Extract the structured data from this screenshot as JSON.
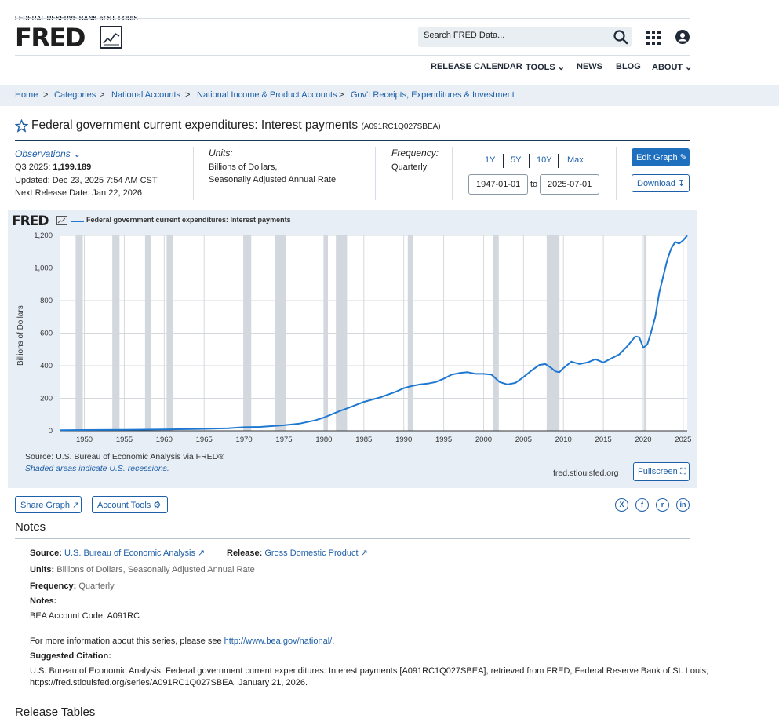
{
  "header": {
    "bank_name": "FEDERAL RESERVE BANK of ST. LOUIS",
    "logo": "FRED",
    "search_placeholder": "Search FRED Data...",
    "nav": [
      "RELEASE CALENDAR",
      "TOOLS",
      "NEWS",
      "BLOG",
      "ABOUT"
    ]
  },
  "breadcrumb": [
    "Home",
    "Categories",
    "National Accounts",
    "National Income & Product Accounts",
    "Gov't Receipts, Expenditures & Investment"
  ],
  "series": {
    "title": "Federal government current expenditures: Interest payments",
    "code": "(A091RC1Q027SBEA)",
    "observations_label": "Observations",
    "obs_period": "Q3 2025:",
    "obs_value": "1,199.189",
    "updated": "Updated: Dec 23, 2025 7:54 AM CST",
    "next_release": "Next Release Date: Jan 22, 2026",
    "units_label": "Units:",
    "units_line1": "Billions of Dollars,",
    "units_line2": "Seasonally Adjusted Annual Rate",
    "frequency_label": "Frequency:",
    "frequency": "Quarterly",
    "ranges": [
      "1Y",
      "5Y",
      "10Y",
      "Max"
    ],
    "start_date": "1947-01-01",
    "to": "to",
    "end_date": "2025-07-01",
    "edit_graph": "Edit Graph",
    "download": "Download"
  },
  "chart_panel": {
    "logo": "FRED",
    "source": "Source: U.S. Bureau of Economic Analysis via FRED®",
    "shaded_note": "Shaded areas indicate U.S. recessions.",
    "site": "fred.stlouisfed.org",
    "fullscreen": "Fullscreen"
  },
  "chart_data": {
    "type": "line",
    "title": "",
    "legend": "Federal government current expenditures: Interest payments",
    "xlabel": "",
    "ylabel": "Billions of Dollars",
    "xlim": [
      1947,
      2025.5
    ],
    "ylim": [
      0,
      1200
    ],
    "yticks": [
      "0",
      "200",
      "400",
      "600",
      "800",
      "1,000",
      "1,200"
    ],
    "xticks": [
      "1950",
      "1955",
      "1960",
      "1965",
      "1970",
      "1975",
      "1980",
      "1985",
      "1990",
      "1995",
      "2000",
      "2005",
      "2010",
      "2015",
      "2020",
      "2025"
    ],
    "grid": true,
    "series_color": "#1e78d2",
    "recessions": [
      [
        1948.9,
        1949.8
      ],
      [
        1953.5,
        1954.4
      ],
      [
        1957.6,
        1958.3
      ],
      [
        1960.3,
        1961.1
      ],
      [
        1969.9,
        1970.9
      ],
      [
        1973.9,
        1975.2
      ],
      [
        1980.0,
        1980.5
      ],
      [
        1981.5,
        1982.9
      ],
      [
        1990.5,
        1991.2
      ],
      [
        2001.2,
        2001.9
      ],
      [
        2007.9,
        2009.5
      ],
      [
        2020.1,
        2020.4
      ]
    ],
    "series": [
      {
        "name": "Federal government current expenditures: Interest payments",
        "x": [
          1947,
          1950,
          1955,
          1960,
          1965,
          1968,
          1970,
          1972,
          1975,
          1977,
          1979,
          1980,
          1981,
          1982,
          1983,
          1985,
          1987,
          1989,
          1990,
          1991,
          1992,
          1993,
          1994,
          1995,
          1996,
          1997,
          1998,
          1999,
          2000,
          2001,
          2002,
          2003,
          2004,
          2005,
          2006,
          2007,
          2007.75,
          2008.5,
          2009,
          2009.5,
          2010,
          2011,
          2012,
          2013,
          2014,
          2015,
          2016,
          2017,
          2018,
          2019,
          2019.5,
          2020,
          2020.5,
          2021,
          2021.5,
          2022,
          2022.5,
          2023,
          2023.5,
          2024,
          2024.5,
          2025,
          2025.5
        ],
        "values": [
          4,
          5,
          6,
          8,
          12,
          16,
          22,
          24,
          34,
          45,
          66,
          82,
          102,
          122,
          140,
          178,
          205,
          240,
          262,
          275,
          285,
          290,
          300,
          320,
          345,
          355,
          360,
          350,
          350,
          345,
          300,
          285,
          295,
          330,
          370,
          405,
          410,
          385,
          365,
          360,
          385,
          425,
          410,
          420,
          440,
          420,
          445,
          470,
          520,
          580,
          575,
          510,
          530,
          610,
          700,
          850,
          950,
          1050,
          1120,
          1160,
          1150,
          1170,
          1199
        ]
      }
    ]
  },
  "tools": {
    "share_graph": "Share Graph",
    "account_tools": "Account Tools",
    "social": [
      "X",
      "f",
      "r",
      "in"
    ]
  },
  "notes": {
    "heading": "Notes",
    "source_label": "Source:",
    "source": "U.S. Bureau of Economic Analysis",
    "release_label": "Release:",
    "release": "Gross Domestic Product",
    "units_label": "Units:",
    "units": "Billions of Dollars, Seasonally Adjusted Annual Rate",
    "frequency_label": "Frequency:",
    "frequency": "Quarterly",
    "notes_label": "Notes:",
    "account_code": "BEA Account Code: A091RC",
    "more_info_prefix": "For more information about this series, please see",
    "more_info_link": "http://www.bea.gov/national/",
    "more_info_suffix": ".",
    "citation_label": "Suggested Citation:",
    "citation_line1": "U.S. Bureau of Economic Analysis, Federal government current expenditures: Interest payments [A091RC1Q027SBEA], retrieved from FRED, Federal Reserve Bank of St. Louis;",
    "citation_line2": "https://fred.stlouisfed.org/series/A091RC1Q027SBEA, January 21, 2026."
  },
  "release_tables": {
    "heading": "Release Tables"
  }
}
